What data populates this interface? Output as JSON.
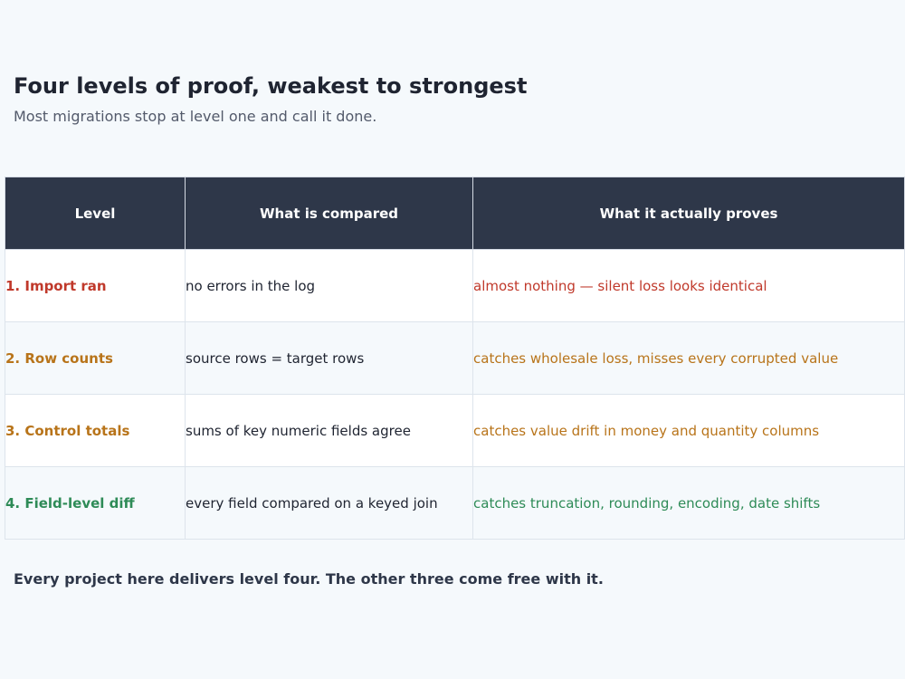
{
  "header": {
    "title": "Four levels of proof, weakest to strongest",
    "subtitle": "Most migrations stop at level one and call it done."
  },
  "table": {
    "columns": [
      "Level",
      "What is compared",
      "What it actually proves"
    ],
    "rows": [
      {
        "level": "1. Import ran",
        "compared": "no errors in the log",
        "proves": "almost nothing — silent loss looks identical",
        "color": "#c0392b"
      },
      {
        "level": "2. Row counts",
        "compared": "source rows = target rows",
        "proves": "catches wholesale loss, misses every corrupted value",
        "color": "#b8741a"
      },
      {
        "level": "3. Control totals",
        "compared": "sums of key numeric fields agree",
        "proves": "catches value drift in money and quantity columns",
        "color": "#b8741a"
      },
      {
        "level": "4. Field-level diff",
        "compared": "every field compared on a keyed join",
        "proves": "catches truncation, rounding, encoding, date shifts",
        "color": "#2e8b57"
      }
    ]
  },
  "footer": {
    "note": "Every project here delivers level four. The other three come free with it."
  }
}
